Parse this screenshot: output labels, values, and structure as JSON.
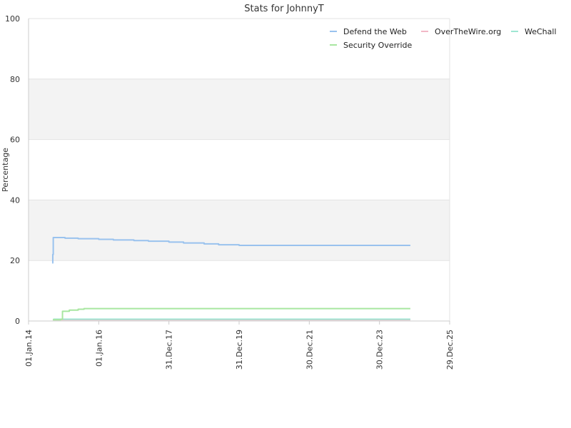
{
  "chart_data": {
    "type": "line",
    "title": "Stats for JohnnyT",
    "xlabel": "",
    "ylabel": "Percentage",
    "ylim": [
      0,
      100
    ],
    "xlim": [
      "2014-01-01",
      "2025-12-29"
    ],
    "y_ticks": [
      0,
      20,
      40,
      60,
      80,
      100
    ],
    "x_ticks": [
      {
        "date": "2014-01-01",
        "label": "01.Jan.14"
      },
      {
        "date": "2016-01-01",
        "label": "01.Jan.16"
      },
      {
        "date": "2017-12-31",
        "label": "31.Dec.17"
      },
      {
        "date": "2019-12-31",
        "label": "31.Dec.19"
      },
      {
        "date": "2021-12-30",
        "label": "30.Dec.21"
      },
      {
        "date": "2023-12-30",
        "label": "30.Dec.23"
      },
      {
        "date": "2025-12-29",
        "label": "29.Dec.25"
      }
    ],
    "grid": true,
    "alternating_bands": true,
    "legend_position": "top-right",
    "series": [
      {
        "name": "Defend the Web",
        "color": "#99c2ee",
        "points": [
          [
            "2014-09-05",
            19.2
          ],
          [
            "2014-09-10",
            22.0
          ],
          [
            "2014-09-15",
            27.6
          ],
          [
            "2015-01-15",
            27.4
          ],
          [
            "2015-06-01",
            27.2
          ],
          [
            "2016-01-01",
            27.0
          ],
          [
            "2016-06-01",
            26.8
          ],
          [
            "2017-01-01",
            26.6
          ],
          [
            "2017-06-01",
            26.4
          ],
          [
            "2017-12-31",
            26.1
          ],
          [
            "2018-06-01",
            25.8
          ],
          [
            "2019-01-01",
            25.5
          ],
          [
            "2019-06-01",
            25.2
          ],
          [
            "2019-12-31",
            25.0
          ],
          [
            "2024-11-15",
            25.0
          ]
        ]
      },
      {
        "name": "OverTheWire.org",
        "color": "#f2b8c6",
        "points": [
          [
            "2014-09-15",
            0.4
          ],
          [
            "2024-11-15",
            0.4
          ]
        ]
      },
      {
        "name": "WeChall",
        "color": "#9ee6d2",
        "points": [
          [
            "2014-09-15",
            0.6
          ],
          [
            "2024-11-15",
            0.6
          ]
        ]
      },
      {
        "name": "Security Override",
        "color": "#a8e6a0",
        "points": [
          [
            "2014-09-10",
            0.4
          ],
          [
            "2014-12-01",
            0.6
          ],
          [
            "2014-12-20",
            3.2
          ],
          [
            "2015-03-01",
            3.6
          ],
          [
            "2015-06-01",
            3.9
          ],
          [
            "2015-08-01",
            4.1
          ],
          [
            "2024-11-15",
            4.1
          ]
        ]
      }
    ]
  }
}
